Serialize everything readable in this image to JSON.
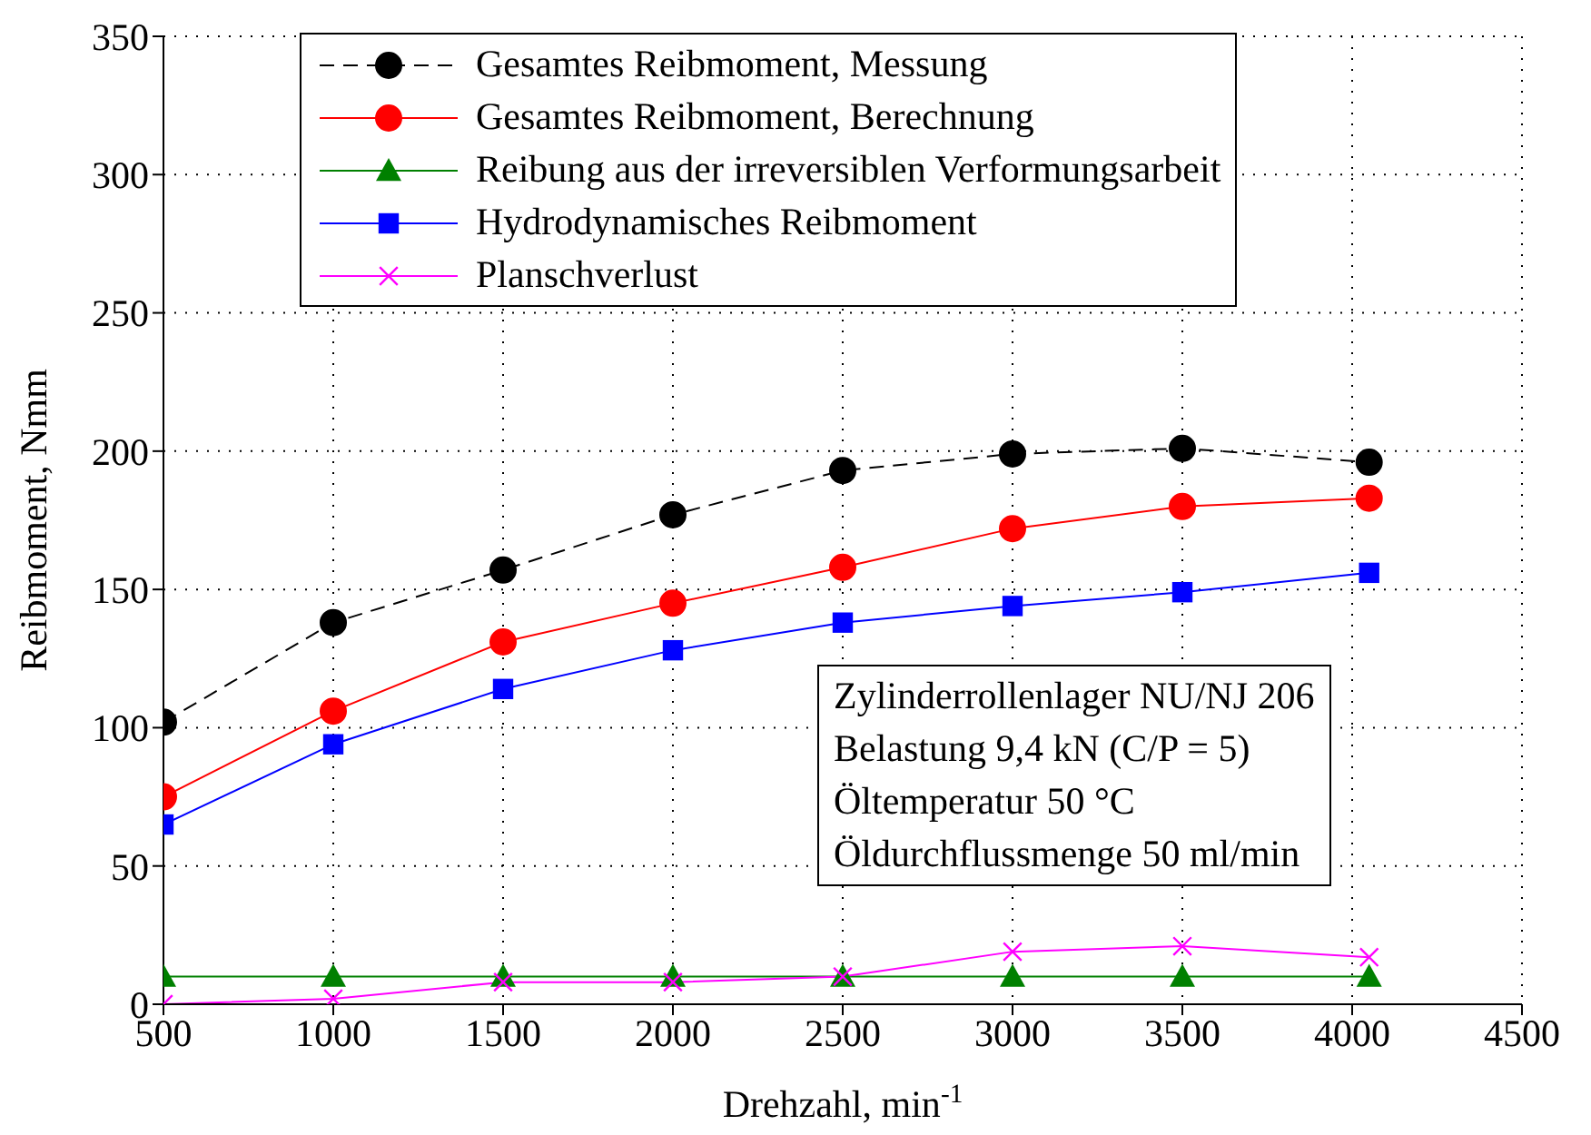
{
  "chart_data": {
    "type": "line",
    "xlabel": "Drehzahl, min$^{-1}$",
    "ylabel": "Reibmoment, Nmm",
    "x": [
      500,
      1000,
      1500,
      2000,
      2500,
      3000,
      3500,
      4050
    ],
    "xlim": [
      500,
      4500
    ],
    "xticks": [
      500,
      1000,
      1500,
      2000,
      2500,
      3000,
      3500,
      4000,
      4500
    ],
    "ylim": [
      0,
      350
    ],
    "yticks": [
      0,
      50,
      100,
      150,
      200,
      250,
      300,
      350
    ],
    "grid": true,
    "legend": "top",
    "series": [
      {
        "name": "Gesamtes Reibmoment, Messung",
        "color": "#000000",
        "marker": "circle",
        "line_style": "dashed",
        "values": [
          102,
          138,
          157,
          177,
          193,
          199,
          201,
          196
        ]
      },
      {
        "name": "Gesamtes Reibmoment, Berechnung",
        "color": "#ff0000",
        "marker": "circle",
        "line_style": "solid",
        "values": [
          75,
          106,
          131,
          145,
          158,
          172,
          180,
          183
        ]
      },
      {
        "name": "Reibung aus der irreversiblen Verformungsarbeit",
        "color": "#008000",
        "marker": "triangle",
        "line_style": "solid",
        "values": [
          10,
          10,
          10,
          10,
          10,
          10,
          10,
          10
        ]
      },
      {
        "name": "Hydrodynamisches Reibmoment",
        "color": "#0000ff",
        "marker": "square",
        "line_style": "solid",
        "values": [
          65,
          94,
          114,
          128,
          138,
          144,
          149,
          156
        ]
      },
      {
        "name": "Planschverlust",
        "color": "#ff00ff",
        "marker": "cross",
        "line_style": "solid",
        "values": [
          0,
          2,
          8,
          8,
          10,
          19,
          21,
          17
        ]
      }
    ],
    "annotations": [
      "Zylinderrollenlager NU/NJ 206",
      "Belastung 9,4 kN (C/P = 5)",
      "Öltemperatur 50 °C",
      "Öldurchflussmenge 50 ml/min"
    ]
  }
}
